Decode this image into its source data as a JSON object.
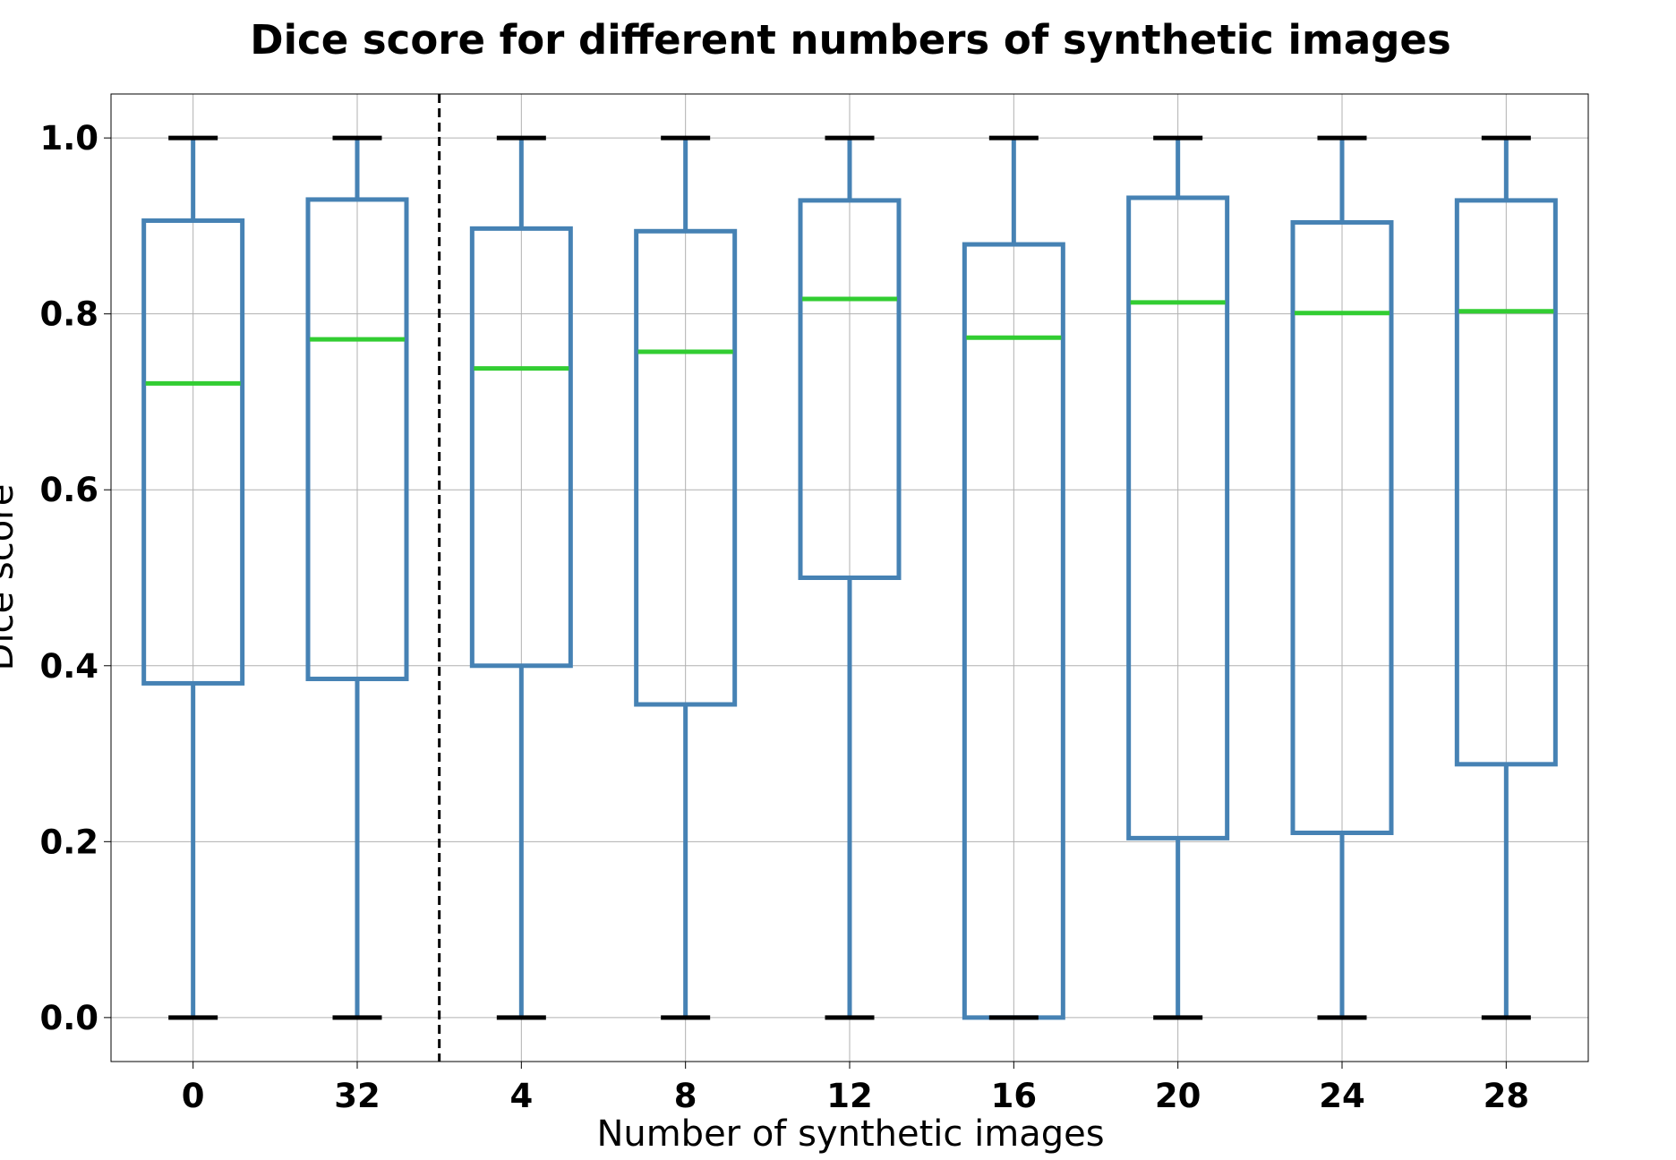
{
  "chart_data": {
    "type": "box",
    "title": "Dice score for different numbers of synthetic images",
    "xlabel": "Number of synthetic images",
    "ylabel": "Dice score",
    "ylim": [
      -0.05,
      1.05
    ],
    "yticks": [
      0.0,
      0.2,
      0.4,
      0.6,
      0.8,
      1.0
    ],
    "ytick_labels": [
      "0.0",
      "0.2",
      "0.4",
      "0.6",
      "0.8",
      "1.0"
    ],
    "grid": true,
    "divider_after_index": 1,
    "colors": {
      "box": "#4682b4",
      "median": "#32cd32",
      "cap": "#000000",
      "grid": "#b0b0b0",
      "divider": "#000000"
    },
    "categories": [
      "0",
      "32",
      "4",
      "8",
      "12",
      "16",
      "20",
      "24",
      "28"
    ],
    "boxes": [
      {
        "category": "0",
        "whisker_low": 0.0,
        "q1": 0.38,
        "median": 0.721,
        "q3": 0.906,
        "whisker_high": 1.0
      },
      {
        "category": "32",
        "whisker_low": 0.0,
        "q1": 0.385,
        "median": 0.771,
        "q3": 0.93,
        "whisker_high": 1.0
      },
      {
        "category": "4",
        "whisker_low": 0.0,
        "q1": 0.4,
        "median": 0.738,
        "q3": 0.897,
        "whisker_high": 1.0
      },
      {
        "category": "8",
        "whisker_low": 0.0,
        "q1": 0.356,
        "median": 0.757,
        "q3": 0.894,
        "whisker_high": 1.0
      },
      {
        "category": "12",
        "whisker_low": 0.0,
        "q1": 0.5,
        "median": 0.817,
        "q3": 0.929,
        "whisker_high": 1.0
      },
      {
        "category": "16",
        "whisker_low": 0.0,
        "q1": 0.0,
        "median": 0.773,
        "q3": 0.879,
        "whisker_high": 1.0
      },
      {
        "category": "20",
        "whisker_low": 0.0,
        "q1": 0.204,
        "median": 0.813,
        "q3": 0.932,
        "whisker_high": 1.0
      },
      {
        "category": "24",
        "whisker_low": 0.0,
        "q1": 0.21,
        "median": 0.801,
        "q3": 0.904,
        "whisker_high": 1.0
      },
      {
        "category": "28",
        "whisker_low": 0.0,
        "q1": 0.288,
        "median": 0.803,
        "q3": 0.929,
        "whisker_high": 1.0
      }
    ]
  }
}
